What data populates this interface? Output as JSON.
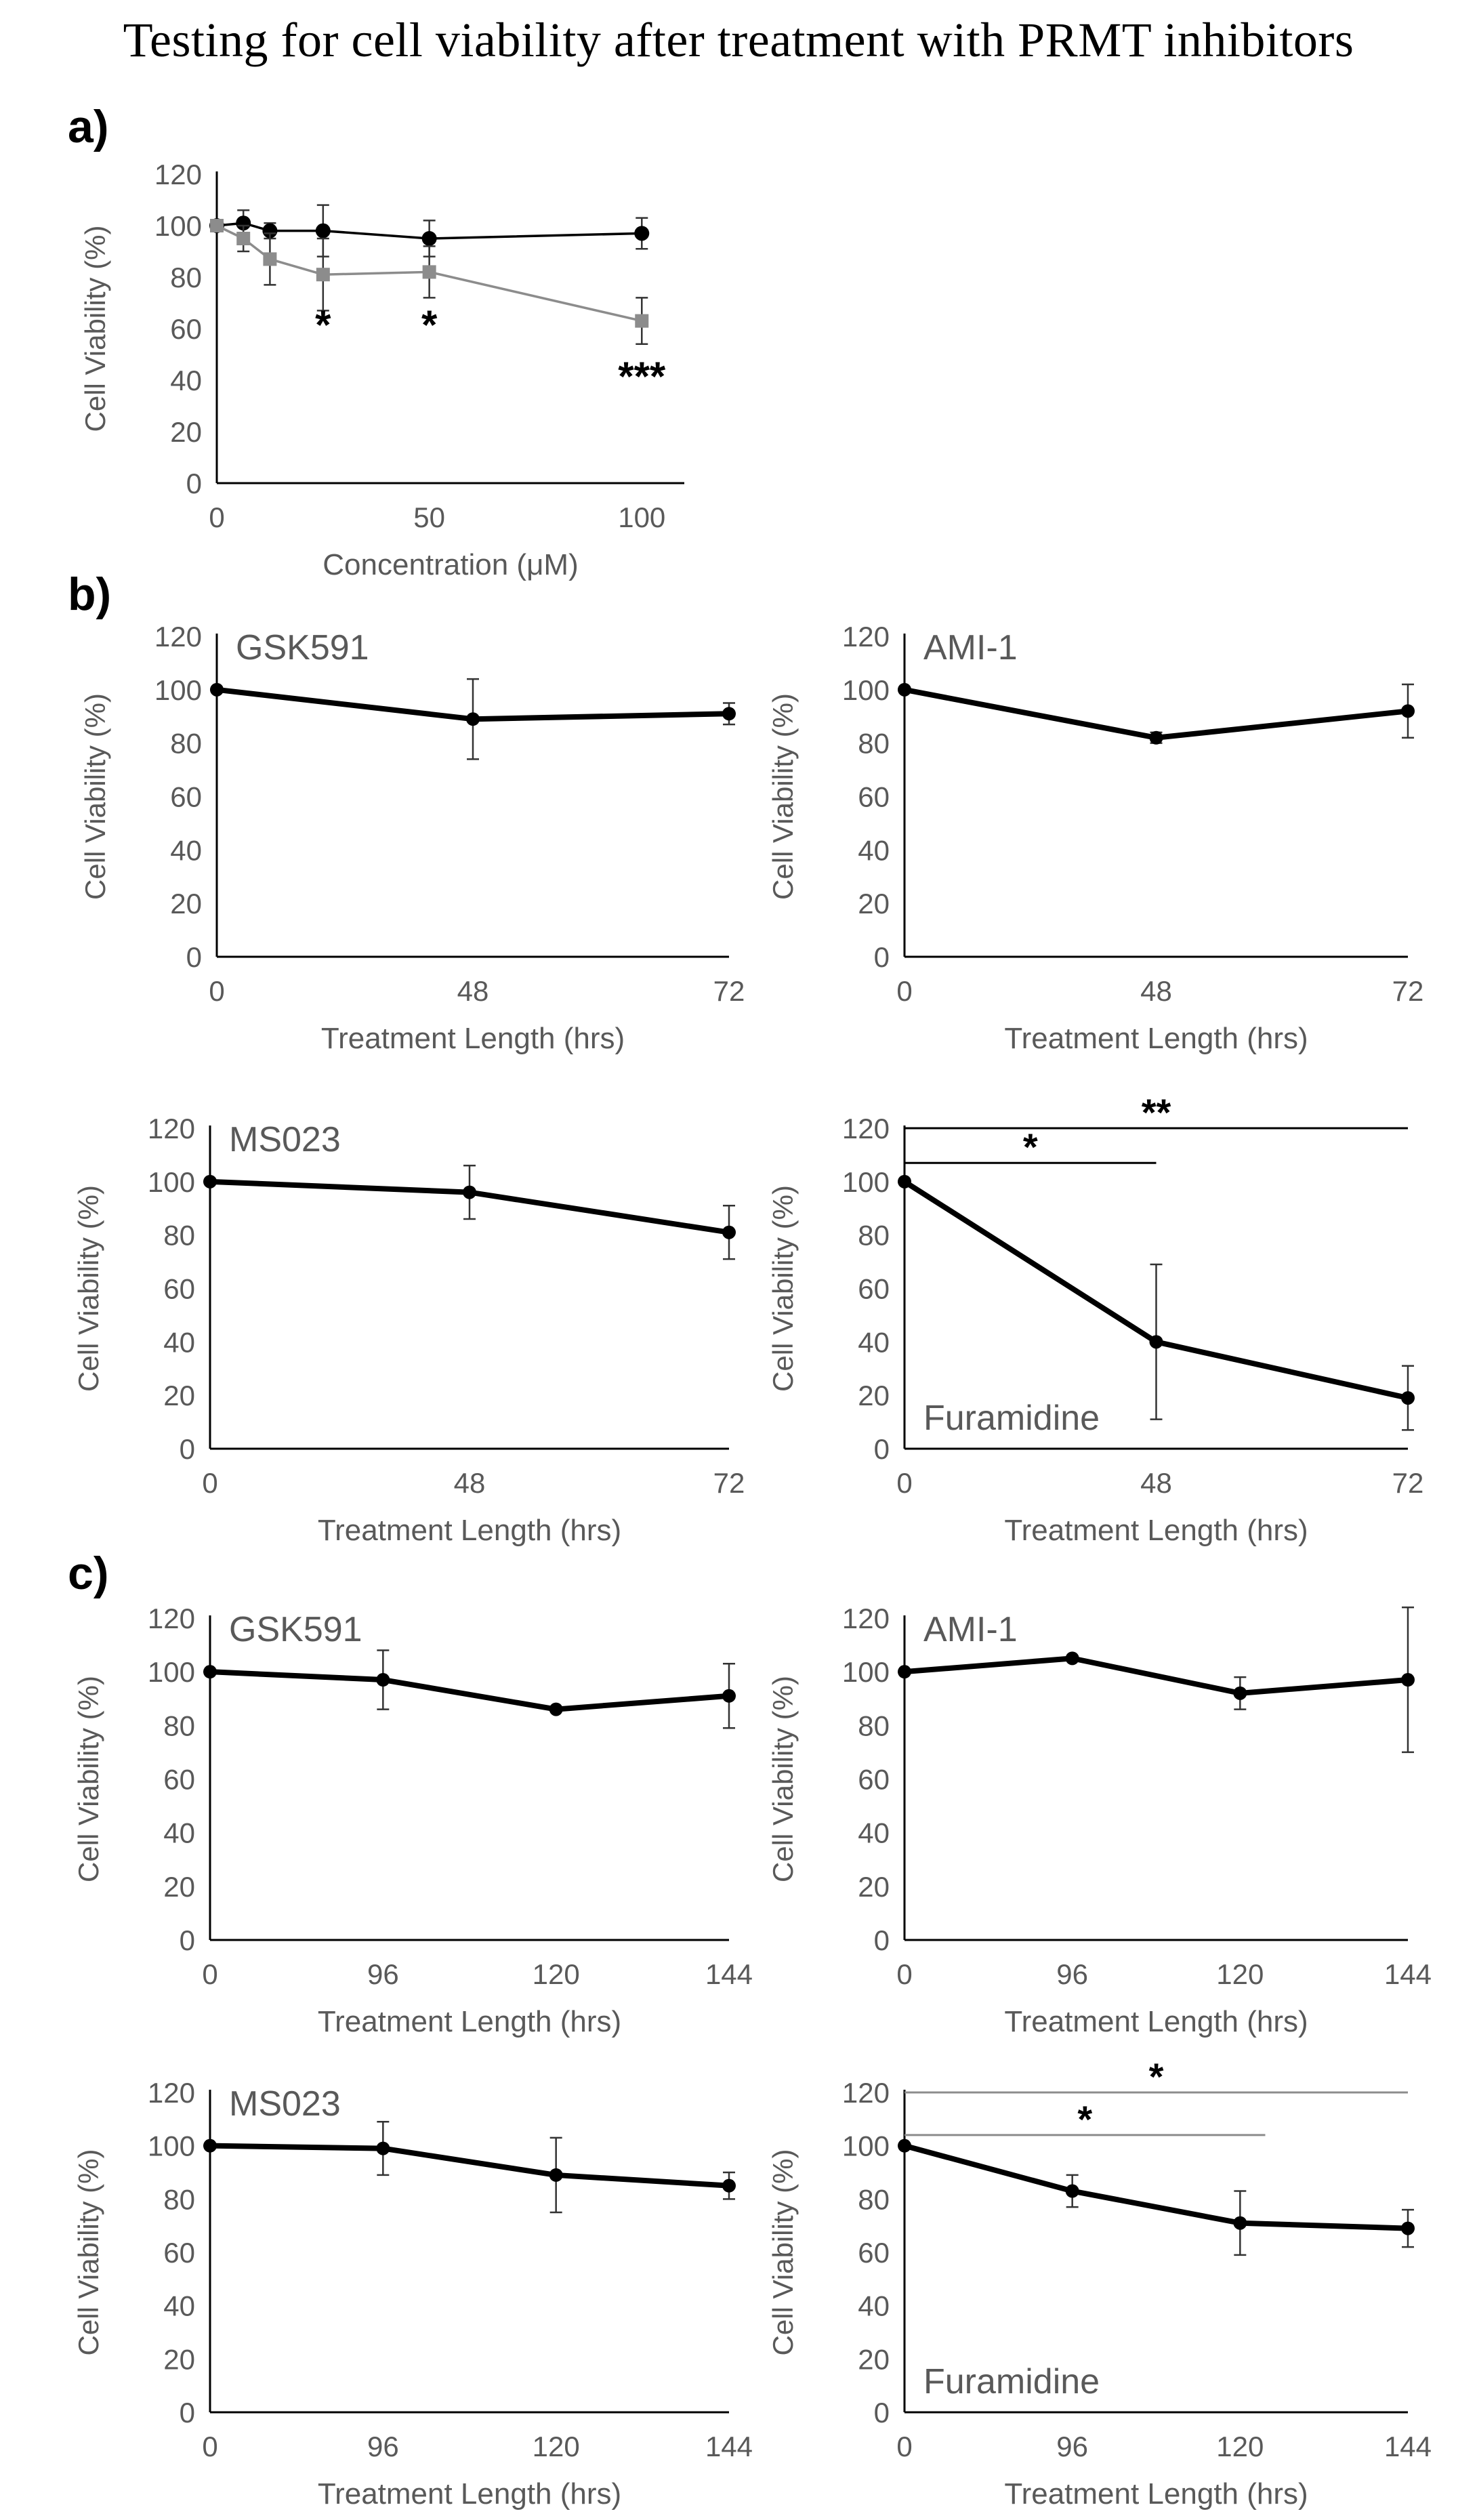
{
  "title": "Testing for cell viability after treatment with PRMT inhibitors",
  "colors": {
    "axis": "#000000",
    "tick": "#595959",
    "series_dark": "#000000",
    "series_gray": "#8c8c8c"
  },
  "chart_data": [
    {
      "id": "a",
      "panel_label": "a)",
      "type": "scatter",
      "drug_label": "",
      "xlabel": "Concentration (μM)",
      "ylabel": "Cell Viability (%)",
      "xlim": [
        0,
        110
      ],
      "ylim": [
        0,
        120
      ],
      "xticks": [
        0,
        50,
        100
      ],
      "yticks": [
        0,
        20,
        40,
        60,
        80,
        100,
        120
      ],
      "series": [
        {
          "name": "series-black",
          "color": "#000000",
          "marker": "circle",
          "line_width": "thin",
          "x": [
            0,
            6.25,
            12.5,
            25,
            50,
            100
          ],
          "y": [
            100,
            101,
            98,
            98,
            95,
            97
          ],
          "err": [
            0,
            5,
            3,
            10,
            7,
            6
          ]
        },
        {
          "name": "series-gray",
          "color": "#8c8c8c",
          "marker": "square",
          "line_width": "thin",
          "x": [
            0,
            6.25,
            12.5,
            25,
            50,
            100
          ],
          "y": [
            100,
            95,
            87,
            81,
            82,
            63
          ],
          "err": [
            0,
            5,
            10,
            14,
            10,
            9
          ]
        }
      ],
      "annotations": [
        {
          "text": "*",
          "x": 25,
          "y": 64
        },
        {
          "text": "*",
          "x": 50,
          "y": 64
        },
        {
          "text": "***",
          "x": 100,
          "y": 44
        }
      ],
      "brackets": []
    },
    {
      "id": "b-gsk591",
      "panel_label": "b)",
      "type": "line",
      "drug_label": "GSK591",
      "drug_label_pos": "top-left",
      "xlabel": "Treatment Length (hrs)",
      "ylabel": "Cell Viability (%)",
      "categories": [
        "0",
        "48",
        "72"
      ],
      "ylim": [
        0,
        120
      ],
      "yticks": [
        0,
        20,
        40,
        60,
        80,
        100,
        120
      ],
      "series": [
        {
          "name": "GSK591",
          "color": "#000000",
          "line_width": "thick",
          "y": [
            100,
            89,
            91
          ],
          "err": [
            0,
            15,
            4
          ]
        }
      ],
      "annotations": [],
      "brackets": []
    },
    {
      "id": "b-ami1",
      "panel_label": "",
      "type": "line",
      "drug_label": "AMI-1",
      "drug_label_pos": "top-left",
      "xlabel": "Treatment Length (hrs)",
      "ylabel": "Cell Viability (%)",
      "categories": [
        "0",
        "48",
        "72"
      ],
      "ylim": [
        0,
        120
      ],
      "yticks": [
        0,
        20,
        40,
        60,
        80,
        100,
        120
      ],
      "series": [
        {
          "name": "AMI-1",
          "color": "#000000",
          "line_width": "thick",
          "y": [
            100,
            82,
            92
          ],
          "err": [
            0,
            2,
            10
          ]
        }
      ],
      "annotations": [],
      "brackets": []
    },
    {
      "id": "b-ms023",
      "panel_label": "",
      "type": "line",
      "drug_label": "MS023",
      "drug_label_pos": "top-left",
      "xlabel": "Treatment Length (hrs)",
      "ylabel": "Cell Viability (%)",
      "categories": [
        "0",
        "48",
        "72"
      ],
      "ylim": [
        0,
        120
      ],
      "yticks": [
        0,
        20,
        40,
        60,
        80,
        100,
        120
      ],
      "series": [
        {
          "name": "MS023",
          "color": "#000000",
          "line_width": "thick",
          "y": [
            100,
            96,
            81
          ],
          "err": [
            0,
            10,
            10
          ]
        }
      ],
      "annotations": [],
      "brackets": []
    },
    {
      "id": "b-furamidine",
      "panel_label": "",
      "type": "line",
      "drug_label": "Furamidine",
      "drug_label_pos": "bottom-left",
      "xlabel": "Treatment Length (hrs)",
      "ylabel": "Cell Viability (%)",
      "categories": [
        "0",
        "48",
        "72"
      ],
      "ylim": [
        0,
        120
      ],
      "yticks": [
        0,
        20,
        40,
        60,
        80,
        100,
        120
      ],
      "series": [
        {
          "name": "Furamidine",
          "color": "#000000",
          "line_width": "thick",
          "y": [
            100,
            40,
            19
          ],
          "err": [
            0,
            29,
            12
          ]
        }
      ],
      "annotations": [],
      "brackets": [
        {
          "text": "*",
          "from": 0,
          "to": 1,
          "y": 107,
          "color": "#000000"
        },
        {
          "text": "**",
          "from": 0,
          "to": 2,
          "y": 120,
          "color": "#000000"
        }
      ]
    },
    {
      "id": "c-gsk591",
      "panel_label": "c)",
      "type": "line",
      "drug_label": "GSK591",
      "drug_label_pos": "top-left",
      "xlabel": "Treatment Length (hrs)",
      "ylabel": "Cell Viability (%)",
      "categories": [
        "0",
        "96",
        "120",
        "144"
      ],
      "ylim": [
        0,
        120
      ],
      "yticks": [
        0,
        20,
        40,
        60,
        80,
        100,
        120
      ],
      "series": [
        {
          "name": "GSK591",
          "color": "#000000",
          "line_width": "thick",
          "y": [
            100,
            97,
            86,
            91
          ],
          "err": [
            0,
            11,
            0,
            12
          ]
        }
      ],
      "annotations": [],
      "brackets": []
    },
    {
      "id": "c-ami1",
      "panel_label": "",
      "type": "line",
      "drug_label": "AMI-1",
      "drug_label_pos": "top-left",
      "xlabel": "Treatment Length (hrs)",
      "ylabel": "Cell Viability (%)",
      "categories": [
        "0",
        "96",
        "120",
        "144"
      ],
      "ylim": [
        0,
        120
      ],
      "yticks": [
        0,
        20,
        40,
        60,
        80,
        100,
        120
      ],
      "series": [
        {
          "name": "AMI-1",
          "color": "#000000",
          "line_width": "thick",
          "y": [
            100,
            105,
            92,
            97
          ],
          "err": [
            0,
            0,
            6,
            27
          ]
        }
      ],
      "annotations": [],
      "brackets": []
    },
    {
      "id": "c-ms023",
      "panel_label": "",
      "type": "line",
      "drug_label": "MS023",
      "drug_label_pos": "top-left",
      "xlabel": "Treatment Length (hrs)",
      "ylabel": "Cell Viability (%)",
      "categories": [
        "0",
        "96",
        "120",
        "144"
      ],
      "ylim": [
        0,
        120
      ],
      "yticks": [
        0,
        20,
        40,
        60,
        80,
        100,
        120
      ],
      "series": [
        {
          "name": "MS023",
          "color": "#000000",
          "line_width": "thick",
          "y": [
            100,
            99,
            89,
            85
          ],
          "err": [
            0,
            10,
            14,
            5
          ]
        }
      ],
      "annotations": [],
      "brackets": []
    },
    {
      "id": "c-furamidine",
      "panel_label": "",
      "type": "line",
      "drug_label": "Furamidine",
      "drug_label_pos": "bottom-left",
      "xlabel": "Treatment Length (hrs)",
      "ylabel": "Cell Viability (%)",
      "categories": [
        "0",
        "96",
        "120",
        "144"
      ],
      "ylim": [
        0,
        120
      ],
      "yticks": [
        0,
        20,
        40,
        60,
        80,
        100,
        120
      ],
      "series": [
        {
          "name": "Furamidine",
          "color": "#000000",
          "line_width": "thick",
          "y": [
            100,
            83,
            71,
            69
          ],
          "err": [
            0,
            6,
            12,
            7
          ]
        }
      ],
      "annotations": [],
      "brackets": [
        {
          "text": "*",
          "from": 0,
          "to": 2.15,
          "y": 104,
          "color": "#8c8c8c"
        },
        {
          "text": "*",
          "from": 0,
          "to": 3,
          "y": 120,
          "color": "#8c8c8c"
        }
      ]
    }
  ]
}
